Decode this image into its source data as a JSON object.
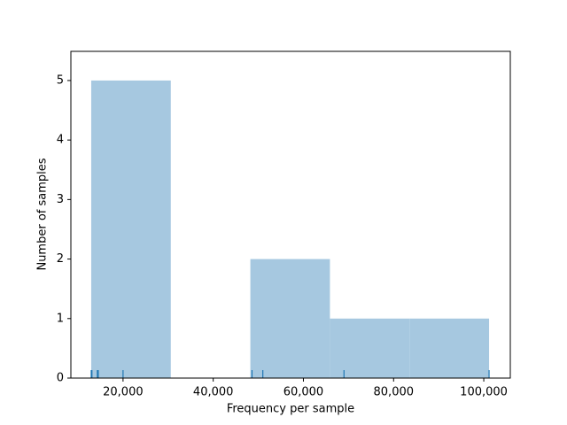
{
  "chart_data": {
    "type": "histogram",
    "bins": [
      12941,
      30588,
      48235,
      65882,
      83529,
      101176
    ],
    "values": [
      5,
      0,
      2,
      1,
      1
    ],
    "color": "#a6c8e0",
    "rug": [
      12941,
      13100,
      14300,
      14500,
      20000,
      48600,
      51000,
      69000,
      101176
    ],
    "rug_color": "#1f77b4",
    "xlabel": "Frequency per sample",
    "ylabel": "Number of samples",
    "xlim": [
      8431,
      105882
    ],
    "xticks": [
      {
        "value": 20000,
        "label": "20,000"
      },
      {
        "value": 40000,
        "label": "40,000"
      },
      {
        "value": 60000,
        "label": "60,000"
      },
      {
        "value": 80000,
        "label": "80,000"
      },
      {
        "value": 100000,
        "label": "100,000"
      }
    ],
    "ylim": [
      0,
      5.49
    ],
    "yticks": [
      0,
      1,
      2,
      3,
      4,
      5
    ]
  }
}
